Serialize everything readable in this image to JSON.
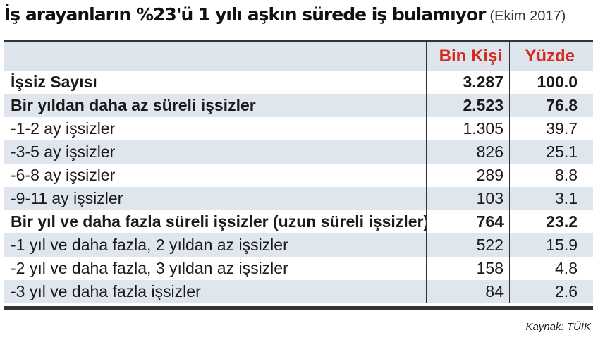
{
  "header": {
    "title": "İş arayanların %23'ü 1 yılı aşkın sürede iş bulamıyor",
    "subtitle": "(Ekim 2017)"
  },
  "table": {
    "columns": [
      "",
      "Bin Kişi",
      "Yüzde"
    ],
    "rows": [
      {
        "label": "İşsiz Sayısı",
        "bin_kisi": "3.287",
        "yuzde": "100.0",
        "bold": true
      },
      {
        "label": "Bir yıldan daha az süreli işsizler",
        "bin_kisi": "2.523",
        "yuzde": "76.8",
        "bold": true
      },
      {
        "label": "-1-2 ay işsizler",
        "bin_kisi": "1.305",
        "yuzde": "39.7",
        "bold": false
      },
      {
        "label": "-3-5 ay işsizler",
        "bin_kisi": "826",
        "yuzde": "25.1",
        "bold": false
      },
      {
        "label": "-6-8 ay işsizler",
        "bin_kisi": "289",
        "yuzde": "8.8",
        "bold": false
      },
      {
        "label": "-9-11 ay işsizler",
        "bin_kisi": "103",
        "yuzde": "3.1",
        "bold": false
      },
      {
        "label": "Bir yıl ve daha fazla süreli işsizler (uzun süreli işsizler)",
        "bin_kisi": "764",
        "yuzde": "23.2",
        "bold": true
      },
      {
        "label": "-1 yıl ve daha fazla, 2 yıldan az işsizler",
        "bin_kisi": "522",
        "yuzde": "15.9",
        "bold": false
      },
      {
        "label": "-2 yıl ve daha fazla, 3 yıldan az işsizler",
        "bin_kisi": "158",
        "yuzde": "4.8",
        "bold": false
      },
      {
        "label": "-3 yıl ve daha fazla işsizler",
        "bin_kisi": "84",
        "yuzde": "2.6",
        "bold": false
      }
    ]
  },
  "footer": {
    "source": "Kaynak: TÜİK"
  },
  "colors": {
    "header_accent": "#d52b1e",
    "row_shade": "#dfe6ee",
    "rule": "#333333"
  }
}
